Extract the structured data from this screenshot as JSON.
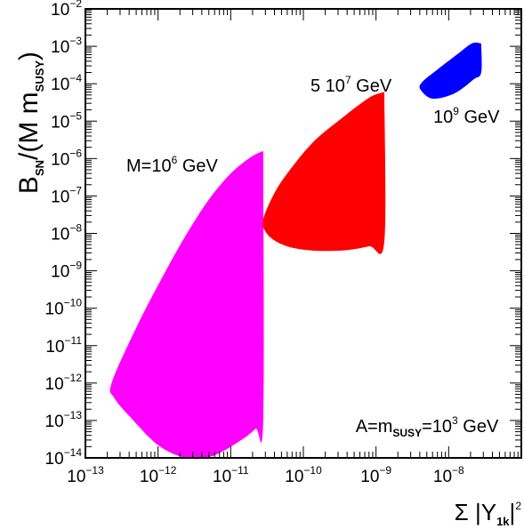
{
  "chart_data": {
    "type": "area",
    "x_axis": {
      "label": {
        "base": "Σ |Y",
        "sub": "1k",
        "tail": "|",
        "sup": "2"
      },
      "scale": "log",
      "range": [
        1e-13,
        1e-07
      ],
      "ticks": [
        {
          "value": 1e-13,
          "base": "10",
          "exp": "−13"
        },
        {
          "value": 1e-12,
          "base": "10",
          "exp": "−12"
        },
        {
          "value": 1e-11,
          "base": "10",
          "exp": "−11"
        },
        {
          "value": 1e-10,
          "base": "10",
          "exp": "−10"
        },
        {
          "value": 1e-09,
          "base": "10",
          "exp": "−9"
        },
        {
          "value": 1e-08,
          "base": "10",
          "exp": "−8"
        }
      ]
    },
    "y_axis": {
      "label": {
        "part1": "B",
        "sub1": "SN",
        "part2": "/(M m",
        "sub2": "SUSY",
        "part3": ")"
      },
      "scale": "log",
      "range": [
        1e-14,
        0.01
      ],
      "ticks": [
        {
          "value": 1e-14,
          "base": "10",
          "exp": "−14"
        },
        {
          "value": 1e-13,
          "base": "10",
          "exp": "−13"
        },
        {
          "value": 1e-12,
          "base": "10",
          "exp": "−12"
        },
        {
          "value": 1e-11,
          "base": "10",
          "exp": "−11"
        },
        {
          "value": 1e-10,
          "base": "10",
          "exp": "−10"
        },
        {
          "value": 1e-09,
          "base": "10",
          "exp": "−9"
        },
        {
          "value": 1e-08,
          "base": "10",
          "exp": "−8"
        },
        {
          "value": 1e-07,
          "base": "10",
          "exp": "−7"
        },
        {
          "value": 1e-06,
          "base": "10",
          "exp": "−6"
        },
        {
          "value": 1e-05,
          "base": "10",
          "exp": "−5"
        },
        {
          "value": 0.0001,
          "base": "10",
          "exp": "−4"
        },
        {
          "value": 0.001,
          "base": "10",
          "exp": "−3"
        },
        {
          "value": 0.01,
          "base": "10",
          "exp": "−2"
        }
      ]
    },
    "grid": false,
    "regions": [
      {
        "label": {
          "base": "M=10",
          "exp": "6",
          "tail": " GeV"
        },
        "color": "#ff00ff",
        "points": [
          [
            2.8e-11,
            1.6e-06
          ],
          [
            1.9e-11,
            1.1e-06
          ],
          [
            1e-11,
            4e-07
          ],
          [
            5e-12,
            8e-08
          ],
          [
            2.5e-12,
            1e-08
          ],
          [
            1.2e-12,
            8e-10
          ],
          [
            5e-13,
            3e-11
          ],
          [
            2.3e-13,
            1e-12
          ],
          [
            2.5e-13,
            4e-13
          ],
          [
            4.2e-13,
            1.2e-13
          ],
          [
            1e-12,
            2.2e-14
          ],
          [
            2.4e-12,
            1e-14
          ],
          [
            5.5e-12,
            1.1e-14
          ],
          [
            1.4e-11,
            3e-14
          ],
          [
            2.2e-11,
            6e-14
          ],
          [
            2.8e-11,
            1e-13
          ],
          [
            2.8e-11,
            1.6e-06
          ]
        ]
      },
      {
        "label": {
          "base": "5 10",
          "exp": "7",
          "tail": " GeV"
        },
        "color": "#ff0000",
        "points": [
          [
            1.3e-09,
            6e-05
          ],
          [
            8e-10,
            4.2e-05
          ],
          [
            3e-10,
            1e-05
          ],
          [
            1.3e-10,
            2.5e-06
          ],
          [
            6e-11,
            4e-07
          ],
          [
            4e-11,
            1.2e-07
          ],
          [
            2.9e-11,
            3e-08
          ],
          [
            2.8e-11,
            1.5e-08
          ],
          [
            3.6e-11,
            7.5e-09
          ],
          [
            6e-11,
            4.5e-09
          ],
          [
            1.3e-10,
            3.5e-09
          ],
          [
            3.5e-10,
            3.5e-09
          ],
          [
            8e-10,
            4.5e-09
          ],
          [
            1.3e-09,
            6e-09
          ],
          [
            1.3e-09,
            6e-05
          ]
        ]
      },
      {
        "label": {
          "base": "10",
          "exp": "9",
          "tail": " GeV"
        },
        "color": "#0000ff",
        "points": [
          [
            2.8e-08,
            0.0012
          ],
          [
            2.1e-08,
            0.0012
          ],
          [
            1.3e-08,
            0.0006
          ],
          [
            7e-09,
            0.00024
          ],
          [
            4.3e-09,
            0.00011
          ],
          [
            4.1e-09,
            7e-05
          ],
          [
            6e-09,
            4e-05
          ],
          [
            1.2e-08,
            5.5e-05
          ],
          [
            2.2e-08,
            0.00013
          ],
          [
            2.8e-08,
            0.0002
          ],
          [
            2.8e-08,
            0.0012
          ]
        ]
      }
    ],
    "annotation": {
      "part1": "A=m",
      "sub": "SUSY",
      "part2": "=10",
      "sup": "3",
      "part3": " GeV"
    }
  }
}
